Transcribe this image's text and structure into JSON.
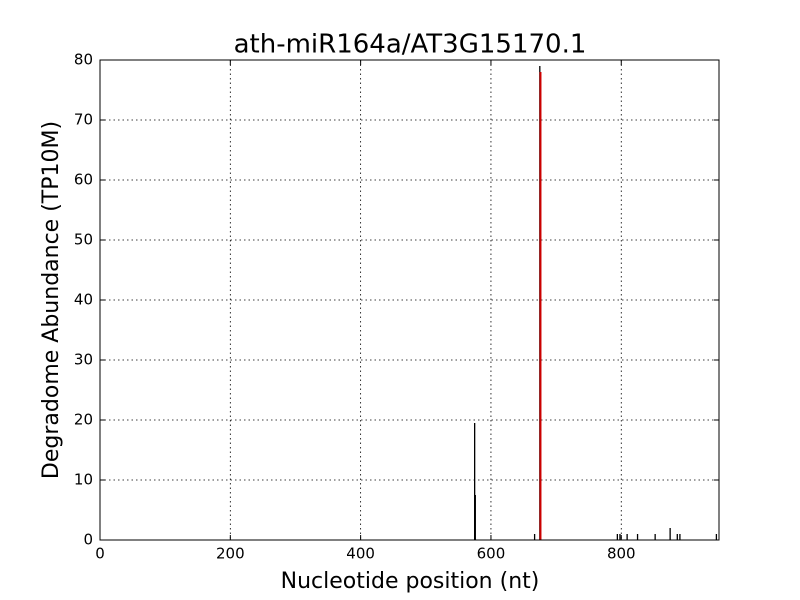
{
  "chart_data": {
    "type": "stem",
    "title": "ath-miR164a/AT3G15170.1",
    "xlabel": "Nucleotide position (nt)",
    "ylabel": "Degradome Abundance (TP10M)",
    "xlim": [
      0,
      950
    ],
    "ylim": [
      0,
      80
    ],
    "xticks": [
      0,
      200,
      400,
      600,
      800
    ],
    "yticks": [
      0,
      10,
      20,
      30,
      40,
      50,
      60,
      70,
      80
    ],
    "grid": true,
    "series": [
      {
        "color": "#000000",
        "x": [
          575,
          576,
          667,
          675,
          794,
          798,
          809,
          825,
          852,
          875,
          886,
          890,
          946
        ],
        "values": [
          19.5,
          7.5,
          1,
          79,
          1,
          1,
          1,
          1,
          1,
          2,
          1,
          1,
          1
        ]
      },
      {
        "color": "#cc0000",
        "x": [
          676
        ],
        "values": [
          78
        ]
      }
    ]
  }
}
